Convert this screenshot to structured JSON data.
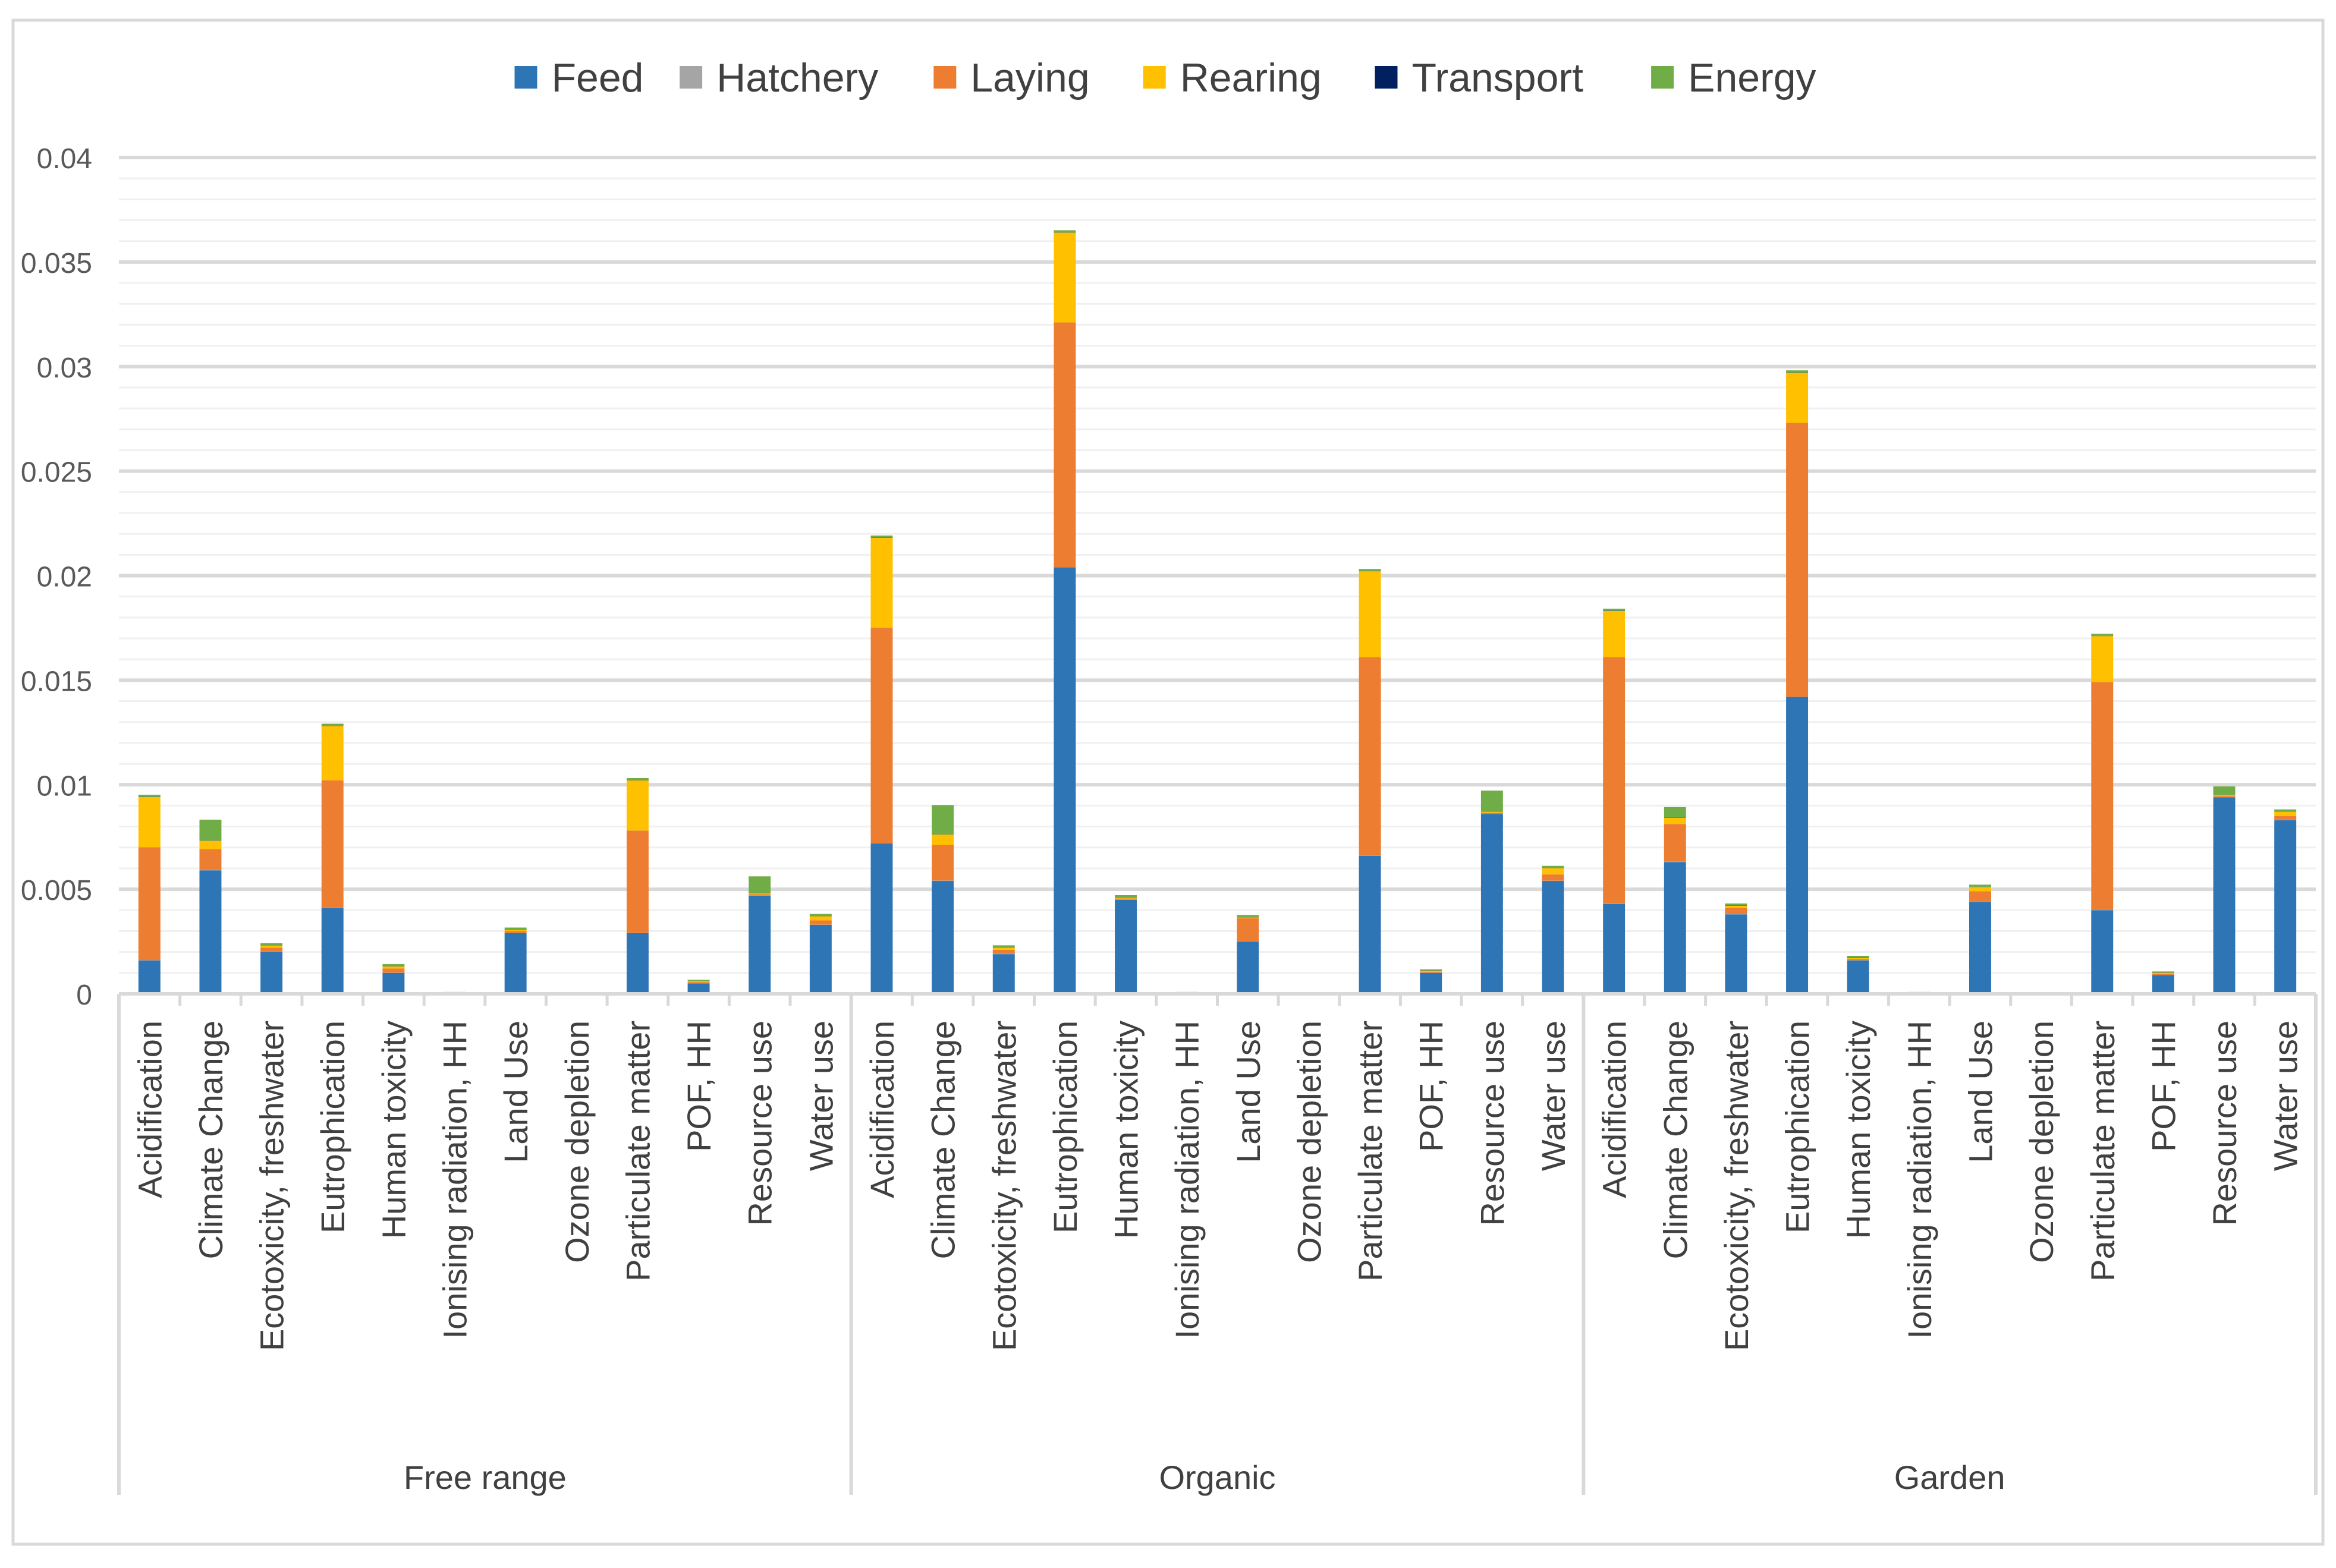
{
  "chart_data": {
    "type": "bar",
    "stacked": true,
    "title": "",
    "xlabel": "",
    "ylabel": "",
    "ylim": [
      0,
      0.04
    ],
    "y_ticks": [
      "0",
      "0.005",
      "0.01",
      "0.015",
      "0.02",
      "0.025",
      "0.03",
      "0.035",
      "0.04"
    ],
    "y_tick_values": [
      0,
      0.005,
      0.01,
      0.015,
      0.02,
      0.025,
      0.03,
      0.035,
      0.04
    ],
    "grid": true,
    "legend_position": "top-center",
    "groups": [
      "Free range",
      "Organic",
      "Garden"
    ],
    "categories": [
      "Acidification",
      "Climate Change",
      "Ecotoxicity, freshwater",
      "Eutrophication",
      "Human toxicity",
      "Ionising radiation, HH",
      "Land Use",
      "Ozone depletion",
      "Particulate matter",
      "POF, HH",
      "Resource use",
      "Water use"
    ],
    "series": [
      {
        "name": "Feed",
        "color": "#2E75B6",
        "values": [
          [
            0.0016,
            0.0059,
            0.002,
            0.0041,
            0.001,
            3e-05,
            0.0029,
            0,
            0.0029,
            0.0005,
            0.0047,
            0.0033
          ],
          [
            0.0072,
            0.0054,
            0.0019,
            0.0204,
            0.0045,
            3e-05,
            0.0025,
            0,
            0.0066,
            0.001,
            0.0086,
            0.0054
          ],
          [
            0.0043,
            0.0063,
            0.0038,
            0.0142,
            0.0016,
            3e-05,
            0.0044,
            0,
            0.004,
            0.0009,
            0.0094,
            0.0083
          ]
        ]
      },
      {
        "name": "Hatchery",
        "color": "#A5A5A5",
        "values": [
          [
            1e-05,
            2e-05,
            1e-05,
            1e-05,
            1e-05,
            1e-05,
            1e-05,
            0,
            1e-05,
            1e-05,
            1e-05,
            1e-05
          ],
          [
            1e-05,
            2e-05,
            1e-05,
            1e-05,
            1e-05,
            1e-05,
            1e-05,
            0,
            1e-05,
            1e-05,
            1e-05,
            1e-05
          ],
          [
            1e-05,
            2e-05,
            1e-05,
            1e-05,
            1e-05,
            1e-05,
            1e-05,
            0,
            1e-05,
            1e-05,
            1e-05,
            1e-05
          ]
        ]
      },
      {
        "name": "Laying",
        "color": "#ED7D31",
        "values": [
          [
            0.0054,
            0.001,
            0.0002,
            0.0061,
            0.0002,
            2e-05,
            0.0001,
            0,
            0.0049,
            5e-05,
            5e-05,
            0.0002
          ],
          [
            0.0103,
            0.0017,
            0.0002,
            0.0117,
            5e-05,
            2e-05,
            0.0011,
            0,
            0.0095,
            5e-05,
            5e-05,
            0.0003
          ],
          [
            0.0118,
            0.0018,
            0.0003,
            0.0131,
            5e-05,
            2e-05,
            0.0005,
            0,
            0.0109,
            5e-05,
            5e-05,
            0.0002
          ]
        ]
      },
      {
        "name": "Rearing",
        "color": "#FFC000",
        "values": [
          [
            0.0024,
            0.0004,
            0.0001,
            0.0026,
            0.0001,
            2e-05,
            5e-05,
            0,
            0.0024,
            5e-05,
            5e-05,
            0.0002
          ],
          [
            0.0043,
            0.0005,
            0.0001,
            0.0043,
            5e-05,
            2e-05,
            5e-05,
            0,
            0.0041,
            5e-05,
            5e-05,
            0.0003
          ],
          [
            0.0022,
            0.0003,
            0.0001,
            0.0024,
            5e-05,
            2e-05,
            0.0002,
            0,
            0.0022,
            5e-05,
            5e-05,
            0.0002
          ]
        ]
      },
      {
        "name": "Transport",
        "color": "#002060",
        "values": [
          [
            1e-05,
            1e-05,
            1e-05,
            1e-05,
            1e-05,
            0,
            1e-05,
            0,
            1e-05,
            1e-05,
            1e-05,
            1e-05
          ],
          [
            1e-05,
            1e-05,
            1e-05,
            1e-05,
            1e-05,
            0,
            1e-05,
            0,
            1e-05,
            1e-05,
            1e-05,
            1e-05
          ],
          [
            1e-05,
            1e-05,
            1e-05,
            1e-05,
            1e-05,
            0,
            1e-05,
            0,
            1e-05,
            1e-05,
            1e-05,
            1e-05
          ]
        ]
      },
      {
        "name": "Energy",
        "color": "#70AD47",
        "values": [
          [
            0.0001,
            0.001,
            0.0001,
            0.0001,
            0.0001,
            1e-05,
            0.0001,
            0,
            0.0001,
            5e-05,
            0.0008,
            0.0001
          ],
          [
            0.0001,
            0.0014,
            0.0001,
            0.0001,
            0.0001,
            1e-05,
            0.0001,
            0,
            0.0001,
            5e-05,
            0.001,
            0.0001
          ],
          [
            0.0001,
            0.0005,
            0.0001,
            0.0001,
            0.0001,
            1e-05,
            0.0001,
            0,
            0.0001,
            5e-05,
            0.0004,
            0.0001
          ]
        ]
      }
    ]
  }
}
